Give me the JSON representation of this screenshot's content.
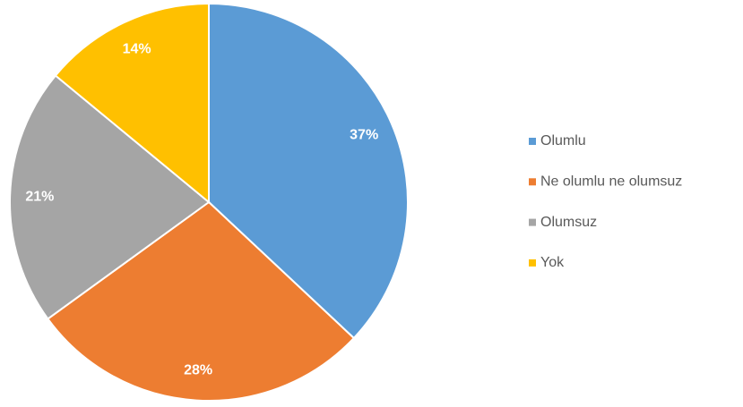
{
  "chart_data": {
    "type": "pie",
    "categories": [
      "Olumlu",
      "Ne olumlu ne olumsuz",
      "Olumsuz",
      "Yok"
    ],
    "values": [
      37,
      28,
      21,
      14
    ],
    "value_labels": [
      "37%",
      "28%",
      "21%",
      "14%"
    ],
    "colors": [
      "#5b9bd5",
      "#ed7d31",
      "#a5a5a5",
      "#ffc000"
    ]
  }
}
